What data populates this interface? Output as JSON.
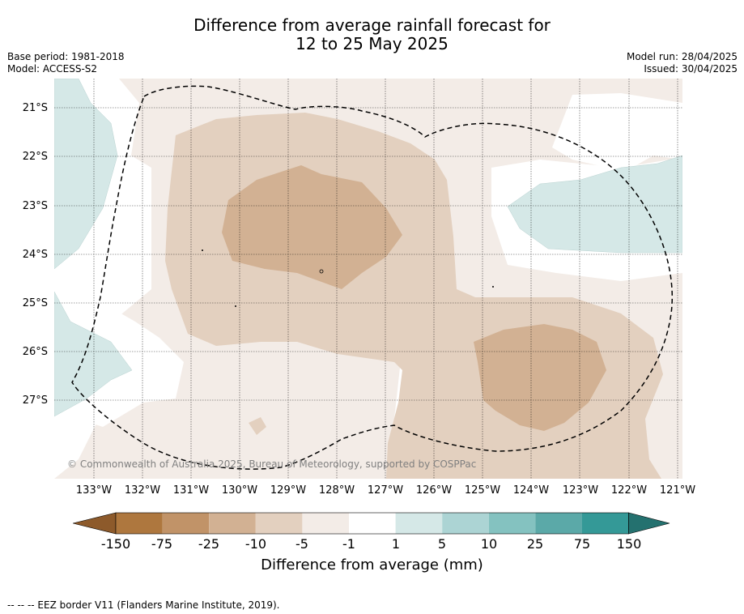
{
  "title": {
    "line1": "Difference from average rainfall forecast for",
    "line2": "12 to 25 May 2025"
  },
  "left_meta": {
    "base_period": "Base period: 1981-2018",
    "model": "Model: ACCESS-S2"
  },
  "right_meta": {
    "model_run": "Model run: 28/04/2025",
    "issued": "Issued: 30/04/2025"
  },
  "map": {
    "latitude_labels": [
      "21°S",
      "22°S",
      "23°S",
      "24°S",
      "25°S",
      "26°S",
      "27°S"
    ],
    "longitude_labels": [
      "133°W",
      "132°W",
      "131°W",
      "130°W",
      "129°W",
      "128°W",
      "127°W",
      "126°W",
      "125°W",
      "124°W",
      "123°W",
      "122°W",
      "121°W"
    ],
    "copyright": "© Commonwealth of Australia 2025, Bureau of Meteorology, supported by COSPPac",
    "colors": {
      "dry_lightest": "#f3ece7",
      "dry_light": "#e3d0bf",
      "dry_medium": "#d2b193",
      "wet_lightest": "#d5e8e7",
      "eez_line": "#000000"
    }
  },
  "colorbar": {
    "ticks": [
      "-150",
      "-75",
      "-25",
      "-10",
      "-5",
      "-1",
      "1",
      "5",
      "10",
      "25",
      "75",
      "150"
    ],
    "colors": [
      "#ae773e",
      "#c19368",
      "#d2b193",
      "#e3d0bf",
      "#f3ece7",
      "#ffffff",
      "#d5e8e7",
      "#acd4d4",
      "#84c2c0",
      "#5ba9a8",
      "#349997"
    ],
    "low_extend_color": "#8d5a2b",
    "high_extend_color": "#24716f",
    "title": "Difference from average (mm)"
  },
  "footer": {
    "eez_legend": "--  --  -- EEZ border V11 (Flanders Marine Institute, 2019)."
  }
}
